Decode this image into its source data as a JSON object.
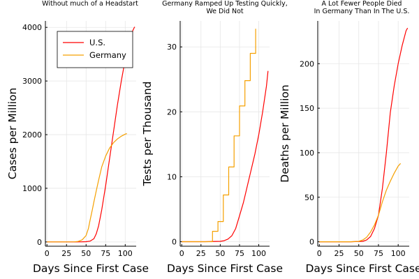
{
  "colors": {
    "us": "#ff0000",
    "germany": "#f5a000",
    "grid": "#e6e6e6"
  },
  "chart_data": [
    {
      "type": "line",
      "title_lines": [
        "Without much of a Headstart"
      ],
      "xlabel": "Days Since First Case",
      "ylabel": "Cases per Million",
      "xlim": [
        -2,
        114
      ],
      "ylim": [
        -80,
        4120
      ],
      "xticks": [
        0,
        25,
        50,
        75,
        100
      ],
      "yticks": [
        0,
        1000,
        2000,
        3000,
        4000
      ],
      "grid": true,
      "legend": {
        "position": "top-right",
        "entries": [
          "U.S.",
          "Germany"
        ]
      },
      "series": [
        {
          "name": "U.S.",
          "color": "#ff0000",
          "x": [
            0,
            20,
            40,
            50,
            55,
            60,
            63,
            66,
            70,
            75,
            80,
            85,
            90,
            95,
            100,
            105,
            110,
            112
          ],
          "y": [
            0,
            0,
            0,
            5,
            15,
            60,
            150,
            300,
            600,
            1050,
            1550,
            2050,
            2550,
            3000,
            3400,
            3700,
            3950,
            4010
          ]
        },
        {
          "name": "Germany",
          "color": "#f5a000",
          "x": [
            0,
            20,
            35,
            40,
            45,
            50,
            53,
            55,
            58,
            60,
            63,
            66,
            70,
            75,
            80,
            85,
            90,
            95,
            100,
            102
          ],
          "y": [
            0,
            0,
            2,
            10,
            40,
            120,
            250,
            400,
            600,
            750,
            950,
            1150,
            1400,
            1600,
            1750,
            1850,
            1920,
            1970,
            2010,
            2020
          ]
        }
      ]
    },
    {
      "type": "line",
      "title_lines": [
        "Germany Ramped Up Testing Quickly,",
        "We Did Not"
      ],
      "xlabel": "Days Since First Case",
      "ylabel": "Tests per Thousand",
      "xlim": [
        -2,
        114
      ],
      "ylim": [
        -0.7,
        34
      ],
      "xticks": [
        0,
        25,
        50,
        75,
        100
      ],
      "yticks": [
        0,
        10,
        20,
        30
      ],
      "grid": true,
      "series": [
        {
          "name": "U.S.",
          "color": "#ff0000",
          "x": [
            0,
            30,
            50,
            55,
            60,
            65,
            70,
            75,
            80,
            85,
            90,
            95,
            100,
            105,
            110,
            112
          ],
          "y": [
            0,
            0,
            0.05,
            0.15,
            0.4,
            0.9,
            2,
            4,
            6,
            8.5,
            11,
            13.5,
            16.5,
            20,
            24,
            26.3
          ]
        },
        {
          "name": "Germany",
          "color": "#f5a000",
          "x": [
            0,
            40,
            40,
            47,
            47,
            54,
            54,
            61,
            61,
            68,
            68,
            75,
            75,
            82,
            82,
            89,
            89,
            96,
            96
          ],
          "y": [
            0,
            0,
            1.6,
            1.6,
            3.1,
            3.1,
            7.2,
            7.2,
            11.5,
            11.5,
            16.3,
            16.3,
            20.9,
            20.9,
            24.8,
            24.8,
            29,
            29,
            32.8
          ]
        }
      ]
    },
    {
      "type": "line",
      "title_lines": [
        "A Lot Fewer People Died",
        "In Germany Than In The U.S."
      ],
      "xlabel": "Days Since First Case",
      "ylabel": "Deaths per Million",
      "xlim": [
        -2,
        114
      ],
      "ylim": [
        -5,
        248
      ],
      "xticks": [
        0,
        25,
        50,
        75,
        100
      ],
      "yticks": [
        0,
        50,
        100,
        150,
        200
      ],
      "grid": true,
      "series": [
        {
          "name": "U.S.",
          "color": "#ff0000",
          "x": [
            0,
            40,
            55,
            60,
            65,
            70,
            75,
            80,
            85,
            90,
            95,
            100,
            105,
            110,
            112
          ],
          "y": [
            0,
            0,
            0.5,
            2,
            6,
            15,
            30,
            60,
            100,
            145,
            175,
            200,
            220,
            237,
            240
          ]
        },
        {
          "name": "Germany",
          "color": "#f5a000",
          "x": [
            0,
            40,
            50,
            55,
            60,
            65,
            70,
            75,
            80,
            85,
            90,
            95,
            100,
            103
          ],
          "y": [
            0,
            0,
            0.5,
            2,
            5,
            11,
            19,
            30,
            45,
            58,
            68,
            77,
            85,
            88
          ]
        }
      ]
    }
  ]
}
